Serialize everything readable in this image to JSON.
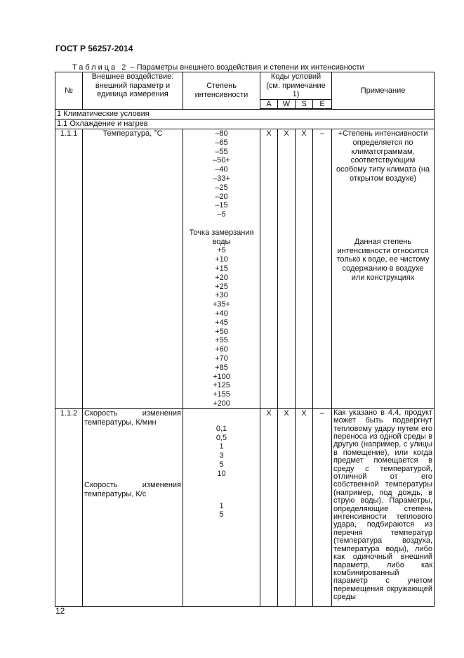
{
  "header": "ГОСТ Р 56257-2014",
  "caption": {
    "prefix": "Таблица",
    "num": "2",
    "title": "– Параметры внешнего воздействия и степени их интенсивности"
  },
  "columns": {
    "num": "№",
    "param": "Внешнее воздействие:\nвнешний параметр и\nединица измерения",
    "degree": "Степень\nинтенсивности",
    "codes": "Коды условий\n(см. примечание 1)",
    "codes_sub": [
      "A",
      "W",
      "S",
      "E"
    ],
    "note": "Примечание"
  },
  "sections": [
    "1 Климатические условия",
    "1.1 Охлаждение и нагрев"
  ],
  "rows": [
    {
      "num": "1.1.1",
      "param": "Температура, °С",
      "degree": "–80\n–65\n–55\n–50+\n–40\n–33+\n–25\n–20\n–15\n–5\n\nТочка замерзания\nводы\n+5\n+10\n+15\n+20\n+25\n+30\n+35+\n+40\n+45\n+50\n+55\n+60\n+70\n+85\n+100\n+125\n+155\n+200",
      "codes": [
        "X",
        "X",
        "X",
        "–"
      ],
      "note1": "+Степень интенсивности\nопределяется по\nклиматограммам,\nсоответствующим\nособому типу климата (на\nоткрытом воздухе)",
      "note2": "Данная степень\nинтенсивности относится\nтолько к воде, ее чистому\nсодержанию в воздухе\nили конструкциях"
    },
    {
      "num": "1.1.2",
      "param1": "Скорость изменения температуры, К/мин",
      "param2": "Скорость изменения температуры, К/с",
      "degree1": "0,1\n0,5\n1\n3\n5\n10",
      "degree2": "1\n5",
      "codes": [
        "X",
        "X",
        "X",
        "–"
      ],
      "note": "Как указано в 4.4, продукт может быть подвергнут тепловому удару путем его переноса из одной среды в другую (например, с улицы в помещение), или когда предмет помещается в среду с температурой, отличной от его собственной температуры (например, под дождь, в струю воды). Параметры, определяющие степень интенсивности теплового удара, подбираются из перечня температур (температура воздуха, температура воды), либо как одиночный внешний параметр, либо как комбинированный параметр с учетом перемещения окружающей среды"
    }
  ],
  "page_number": "12"
}
